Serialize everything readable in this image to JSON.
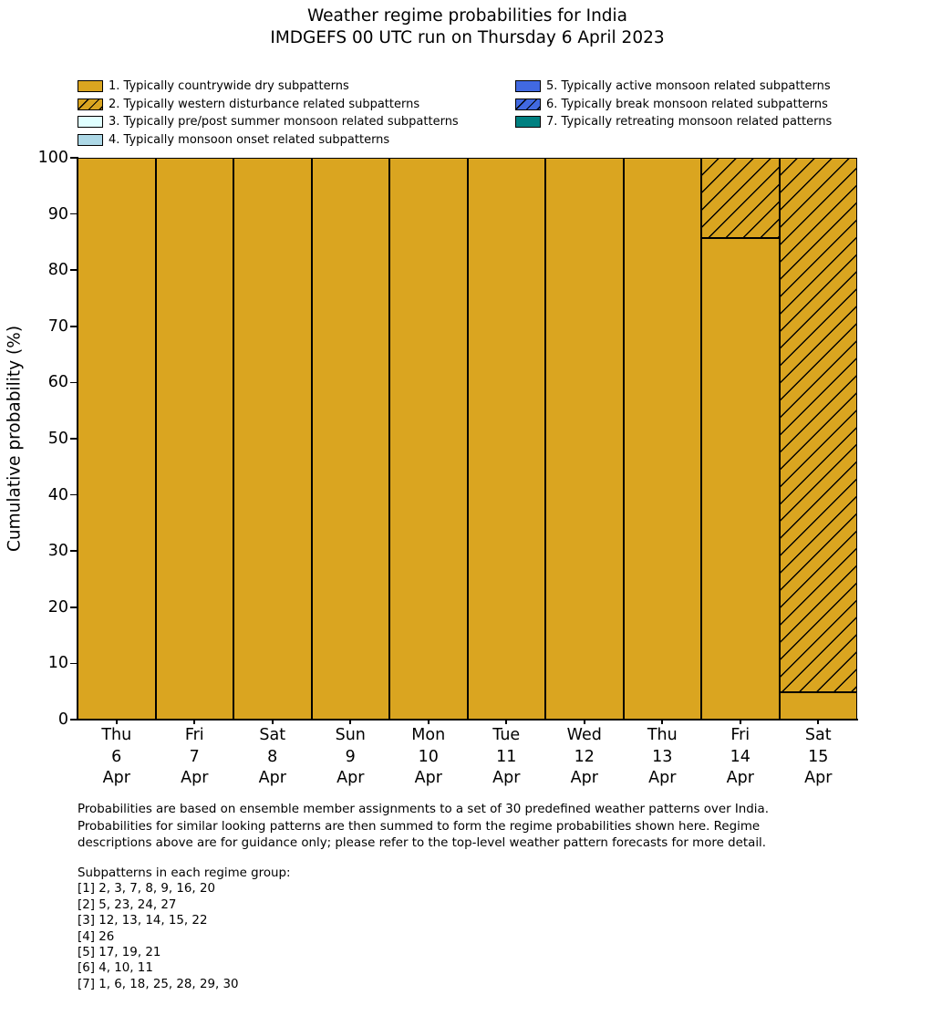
{
  "title": {
    "line1": "Weather regime probabilities for India",
    "line2": "IMDGEFS 00 UTC run on Thursday 6 April 2023"
  },
  "legend": {
    "left_items": [
      {
        "label": "1. Typically countrywide dry subpatterns",
        "color": "#DAA520",
        "hatch": false
      },
      {
        "label": "2. Typically western disturbance related subpatterns",
        "color": "#DAA520",
        "hatch": true
      },
      {
        "label": "3. Typically pre/post summer monsoon related subpatterns",
        "color": "#E0FFFF",
        "hatch": false
      },
      {
        "label": "4. Typically monsoon onset related subpatterns",
        "color": "#ADD8E6",
        "hatch": false
      }
    ],
    "right_items": [
      {
        "label": "5. Typically active monsoon related subpatterns",
        "color": "#4169E1",
        "hatch": false
      },
      {
        "label": "6. Typically break monsoon related subpatterns",
        "color": "#4169E1",
        "hatch": true
      },
      {
        "label": "7. Typically retreating monsoon related patterns",
        "color": "#008080",
        "hatch": false
      }
    ]
  },
  "chart_data": {
    "type": "bar",
    "stacked": true,
    "title": "Weather regime probabilities for India\nIMDGEFS 00 UTC run on Thursday 6 April 2023",
    "xlabel": "",
    "ylabel": "Cumulative probability (%)",
    "ylim": [
      0,
      100
    ],
    "yticks": [
      0,
      10,
      20,
      30,
      40,
      50,
      60,
      70,
      80,
      90,
      100
    ],
    "grid": false,
    "legend_position": "above-plot, two columns, frameless",
    "bar_edge_color": "#000000",
    "categories": [
      [
        "Thu",
        "6",
        "Apr"
      ],
      [
        "Fri",
        "7",
        "Apr"
      ],
      [
        "Sat",
        "8",
        "Apr"
      ],
      [
        "Sun",
        "9",
        "Apr"
      ],
      [
        "Mon",
        "10",
        "Apr"
      ],
      [
        "Tue",
        "11",
        "Apr"
      ],
      [
        "Wed",
        "12",
        "Apr"
      ],
      [
        "Thu",
        "13",
        "Apr"
      ],
      [
        "Fri",
        "14",
        "Apr"
      ],
      [
        "Sat",
        "15",
        "Apr"
      ]
    ],
    "series": [
      {
        "name": "1. Typically countrywide dry subpatterns",
        "color": "#DAA520",
        "hatch": false,
        "values": [
          100,
          100,
          100,
          100,
          100,
          100,
          100,
          100,
          85.7,
          4.8
        ]
      },
      {
        "name": "2. Typically western disturbance related subpatterns",
        "color": "#DAA520",
        "hatch": true,
        "values": [
          0,
          0,
          0,
          0,
          0,
          0,
          0,
          0,
          14.3,
          95.2
        ]
      },
      {
        "name": "3. Typically pre/post summer monsoon related subpatterns",
        "color": "#E0FFFF",
        "hatch": false,
        "values": [
          0,
          0,
          0,
          0,
          0,
          0,
          0,
          0,
          0,
          0
        ]
      },
      {
        "name": "4. Typically monsoon onset related subpatterns",
        "color": "#ADD8E6",
        "hatch": false,
        "values": [
          0,
          0,
          0,
          0,
          0,
          0,
          0,
          0,
          0,
          0
        ]
      },
      {
        "name": "5. Typically active monsoon related subpatterns",
        "color": "#4169E1",
        "hatch": false,
        "values": [
          0,
          0,
          0,
          0,
          0,
          0,
          0,
          0,
          0,
          0
        ]
      },
      {
        "name": "6. Typically break monsoon related subpatterns",
        "color": "#4169E1",
        "hatch": true,
        "values": [
          0,
          0,
          0,
          0,
          0,
          0,
          0,
          0,
          0,
          0
        ]
      },
      {
        "name": "7. Typically retreating monsoon related patterns",
        "color": "#008080",
        "hatch": false,
        "values": [
          0,
          0,
          0,
          0,
          0,
          0,
          0,
          0,
          0,
          0
        ]
      }
    ]
  },
  "footer": {
    "lines": [
      "Probabilities are based on ensemble member assignments to a set of 30 predefined weather patterns over India.",
      "Probabilities for similar looking patterns are then summed to form the regime probabilities shown here. Regime",
      "descriptions above are for guidance only; please refer to the top-level weather pattern forecasts for more detail."
    ]
  },
  "subpatterns": {
    "header": "Subpatterns in each regime group:",
    "groups": [
      "[1] 2, 3, 7, 8, 9, 16, 20",
      "[2] 5, 23, 24, 27",
      "[3] 12, 13, 14, 15, 22",
      "[4] 26",
      "[5] 17, 19, 21",
      "[6] 4, 10, 11",
      "[7] 1, 6, 18, 25, 28, 29, 30"
    ]
  }
}
